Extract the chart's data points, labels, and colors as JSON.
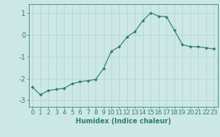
{
  "x": [
    0,
    1,
    2,
    3,
    4,
    5,
    6,
    7,
    8,
    9,
    10,
    11,
    12,
    13,
    14,
    15,
    16,
    17,
    18,
    19,
    20,
    21,
    22,
    23
  ],
  "y": [
    -2.4,
    -2.75,
    -2.55,
    -2.5,
    -2.45,
    -2.25,
    -2.15,
    -2.1,
    -2.05,
    -1.55,
    -0.75,
    -0.55,
    -0.1,
    0.15,
    0.65,
    1.0,
    0.85,
    0.82,
    0.2,
    -0.45,
    -0.55,
    -0.55,
    -0.6,
    -0.65
  ],
  "line_color": "#2e7d6e",
  "marker": "D",
  "marker_size": 2.0,
  "background_color": "#cce8e4",
  "grid_color": "#b0cfcb",
  "xlabel": "Humidex (Indice chaleur)",
  "xlim": [
    -0.5,
    23.5
  ],
  "ylim": [
    -3.3,
    1.4
  ],
  "yticks": [
    -3,
    -2,
    -1,
    0,
    1
  ],
  "xtick_labels": [
    "0",
    "1",
    "2",
    "3",
    "4",
    "5",
    "6",
    "7",
    "8",
    "9",
    "10",
    "11",
    "12",
    "13",
    "14",
    "15",
    "16",
    "17",
    "18",
    "19",
    "20",
    "21",
    "22",
    "23"
  ],
  "tick_color": "#2e7d6e",
  "label_fontsize": 7.0,
  "axis_fontsize": 6.5
}
